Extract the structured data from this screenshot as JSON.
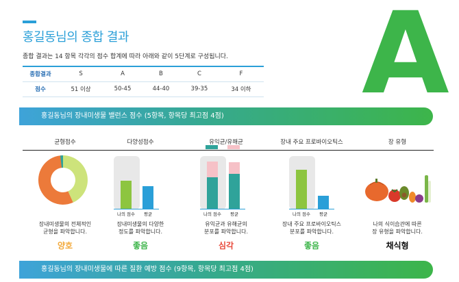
{
  "header": {
    "title": "홍길동님의 종합 결과",
    "subtitle": "종합 결과는 14 항목 각각의 점수 합계에 따라 아래와 같이 5단계로 구성됩니다.",
    "grade": "A"
  },
  "grade_table": {
    "row_headers": [
      "종합결과",
      "점수"
    ],
    "grades": [
      "S",
      "A",
      "B",
      "C",
      "F"
    ],
    "scores": [
      "51 이상",
      "50-45",
      "44-40",
      "39-35",
      "34 이하"
    ]
  },
  "section1": {
    "title": "홍길동님의 장내미생물 밸런스 점수 (5항목, 항목당 최고점 4점)"
  },
  "section2": {
    "title": "홍길동님의 장내미생물에 따른 질환 예방 점수 (9항목, 항목당 최고점 4점)"
  },
  "columns": [
    {
      "header": "균형점수",
      "desc1": "장내미생물의 전체적인",
      "desc2": "균형을 파악합니다.",
      "result": "양호",
      "result_color": "#f2a93b"
    },
    {
      "header": "다양성점수",
      "desc1": "장내미생물의 다양한",
      "desc2": "정도를 파악합니다.",
      "result": "좋음",
      "result_color": "#3db54a"
    },
    {
      "header": "유익균/유해균",
      "desc1": "유익균과 유해균의",
      "desc2": "분포를 파악합니다.",
      "result": "심각",
      "result_color": "#e84a3c"
    },
    {
      "header": "장내 주요 프로바이오틱스",
      "desc1": "장내 주요 프로바이오틱스",
      "desc2": "분포를 파악합니다.",
      "result": "좋음",
      "result_color": "#3db54a"
    },
    {
      "header": "장 유형",
      "desc1": "나의 식이습관에 따른",
      "desc2": "장 유형을 파악합니다.",
      "result": "채식형",
      "result_color": "#111111"
    }
  ],
  "bar_labels": {
    "mine": "나의 점수",
    "avg": "평균"
  },
  "colors": {
    "primary": "#2a9fd8",
    "green": "#3db54a",
    "teal": "#2fa39a",
    "pink": "#f6c1c7",
    "orange": "#ec7a3a",
    "lightgreen": "#cde37b",
    "blue": "#2a9fd8"
  },
  "donut": {
    "segments": [
      0.62,
      0.36,
      0.02
    ]
  }
}
